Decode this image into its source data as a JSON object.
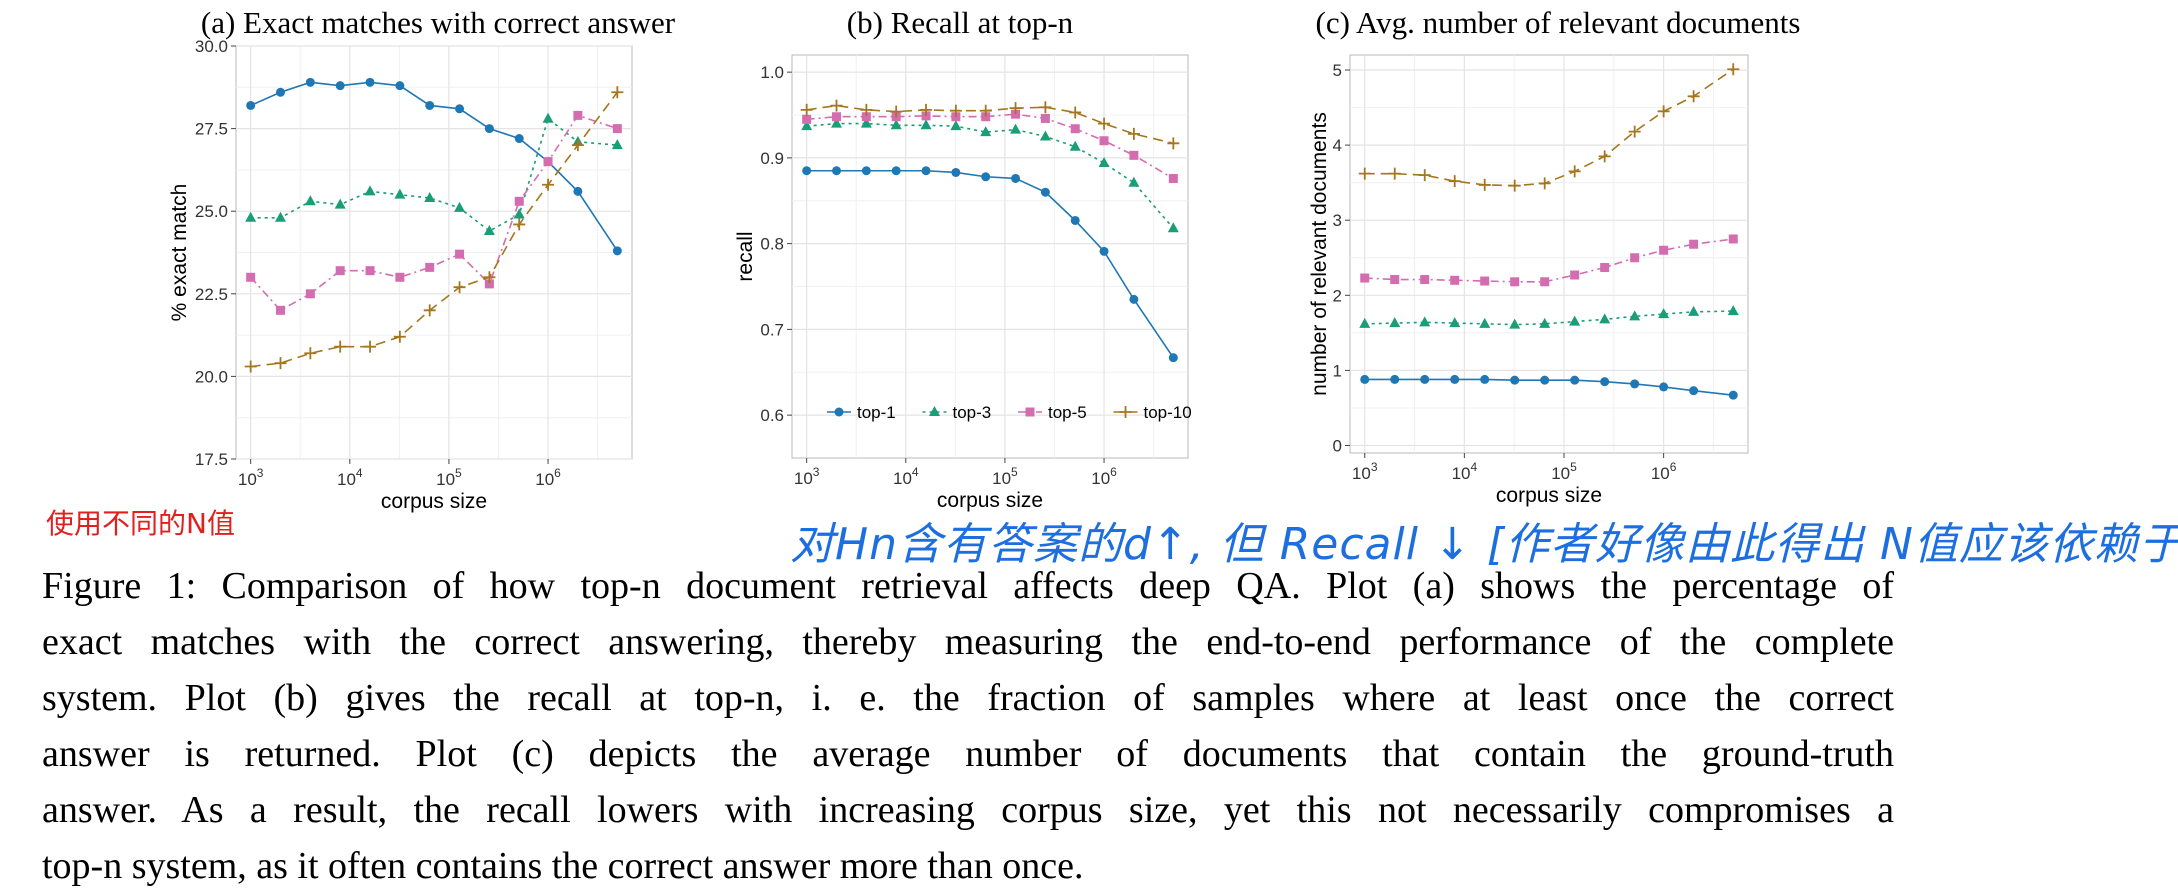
{
  "chart_data": [
    {
      "type": "line",
      "title": "(a) Exact matches with correct answer",
      "xlabel": "corpus size",
      "ylabel": "% exact match",
      "xscale": "log",
      "xlim": [
        1000,
        5000000
      ],
      "xticks": [
        "10^3",
        "10^4",
        "10^5",
        "10^6"
      ],
      "ylim": [
        17.5,
        30.0
      ],
      "yticks": [
        "17.5",
        "20.0",
        "22.5",
        "25.0",
        "27.5",
        "30.0"
      ],
      "grid": true,
      "x": [
        1000,
        2000,
        4000,
        8000,
        16000,
        32000,
        64000,
        128000,
        256000,
        512000,
        1000000,
        2000000,
        5000000
      ],
      "series": [
        {
          "name": "top-1",
          "color": "#1f77b4",
          "marker": "circle",
          "dash": "solid",
          "values": [
            28.2,
            28.6,
            28.9,
            28.8,
            28.9,
            28.8,
            28.2,
            28.1,
            27.5,
            27.2,
            26.5,
            25.6,
            23.8
          ]
        },
        {
          "name": "top-3",
          "color": "#1a9e77",
          "marker": "triangle",
          "dash": "dotted",
          "values": [
            24.8,
            24.8,
            25.3,
            25.2,
            25.6,
            25.5,
            25.4,
            25.1,
            24.4,
            24.9,
            27.8,
            27.1,
            27.0
          ]
        },
        {
          "name": "top-5",
          "color": "#d36db0",
          "marker": "square",
          "dash": "dashdot",
          "values": [
            23.0,
            22.0,
            22.5,
            23.2,
            23.2,
            23.0,
            23.3,
            23.7,
            22.8,
            25.3,
            26.5,
            27.9,
            27.5
          ]
        },
        {
          "name": "top-10",
          "color": "#a6761d",
          "marker": "plus",
          "dash": "dashed",
          "values": [
            20.3,
            20.4,
            20.7,
            20.9,
            20.9,
            21.2,
            22.0,
            22.7,
            23.0,
            24.6,
            25.8,
            27.0,
            28.6
          ]
        }
      ]
    },
    {
      "type": "line",
      "title": "(b) Recall at top-n",
      "xlabel": "corpus size",
      "ylabel": "recall",
      "xscale": "log",
      "xlim": [
        1000,
        5000000
      ],
      "xticks": [
        "10^3",
        "10^4",
        "10^5",
        "10^6"
      ],
      "ylim": [
        0.55,
        1.02
      ],
      "yticks": [
        "0.6",
        "0.7",
        "0.8",
        "0.9",
        "1.0"
      ],
      "grid": true,
      "legend_position": "bottom",
      "x": [
        1000,
        2000,
        4000,
        8000,
        16000,
        32000,
        64000,
        128000,
        256000,
        512000,
        1000000,
        2000000,
        5000000
      ],
      "series": [
        {
          "name": "top-1",
          "color": "#1f77b4",
          "marker": "circle",
          "dash": "solid",
          "values": [
            0.885,
            0.885,
            0.885,
            0.885,
            0.885,
            0.883,
            0.878,
            0.876,
            0.86,
            0.827,
            0.791,
            0.735,
            0.667
          ]
        },
        {
          "name": "top-3",
          "color": "#1a9e77",
          "marker": "triangle",
          "dash": "dotted",
          "values": [
            0.937,
            0.94,
            0.94,
            0.938,
            0.938,
            0.937,
            0.93,
            0.933,
            0.925,
            0.913,
            0.894,
            0.871,
            0.818
          ]
        },
        {
          "name": "top-5",
          "color": "#d36db0",
          "marker": "square",
          "dash": "dashdot",
          "values": [
            0.945,
            0.948,
            0.948,
            0.948,
            0.949,
            0.948,
            0.948,
            0.951,
            0.946,
            0.934,
            0.92,
            0.903,
            0.876
          ]
        },
        {
          "name": "top-10",
          "color": "#a6761d",
          "marker": "plus",
          "dash": "dashed",
          "values": [
            0.956,
            0.961,
            0.956,
            0.954,
            0.956,
            0.955,
            0.955,
            0.958,
            0.959,
            0.953,
            0.94,
            0.928,
            0.917
          ]
        }
      ]
    },
    {
      "type": "line",
      "title": "(c) Avg. number of relevant documents",
      "xlabel": "corpus size",
      "ylabel": "number of relevant documents",
      "xscale": "log",
      "xlim": [
        1000,
        5000000
      ],
      "xticks": [
        "10^3",
        "10^4",
        "10^5",
        "10^6"
      ],
      "ylim": [
        -0.1,
        5.2
      ],
      "yticks": [
        "0",
        "1",
        "2",
        "3",
        "4",
        "5"
      ],
      "grid": true,
      "x": [
        1000,
        2000,
        4000,
        8000,
        16000,
        32000,
        64000,
        128000,
        256000,
        512000,
        1000000,
        2000000,
        5000000
      ],
      "series": [
        {
          "name": "top-1",
          "color": "#1f77b4",
          "marker": "circle",
          "dash": "solid",
          "values": [
            0.88,
            0.88,
            0.88,
            0.88,
            0.88,
            0.87,
            0.87,
            0.87,
            0.85,
            0.82,
            0.78,
            0.73,
            0.67
          ]
        },
        {
          "name": "top-3",
          "color": "#1a9e77",
          "marker": "triangle",
          "dash": "dotted",
          "values": [
            1.62,
            1.63,
            1.64,
            1.63,
            1.62,
            1.61,
            1.62,
            1.65,
            1.68,
            1.72,
            1.75,
            1.78,
            1.79
          ]
        },
        {
          "name": "top-5",
          "color": "#d36db0",
          "marker": "square",
          "dash": "dashdot",
          "values": [
            2.23,
            2.21,
            2.21,
            2.2,
            2.19,
            2.18,
            2.18,
            2.27,
            2.37,
            2.5,
            2.6,
            2.68,
            2.75
          ]
        },
        {
          "name": "top-10",
          "color": "#a6761d",
          "marker": "plus",
          "dash": "dashed",
          "values": [
            3.62,
            3.62,
            3.6,
            3.52,
            3.47,
            3.46,
            3.49,
            3.65,
            3.85,
            4.18,
            4.45,
            4.65,
            5.01
          ]
        }
      ]
    }
  ],
  "annotations": {
    "red_note": "使用不同的N值",
    "handwritten_note": "对Hn含有答案的d↑, 但 Recall ↓  [作者好像由此得出 N值应该依赖于?]"
  },
  "caption": {
    "lines": [
      "Figure 1: Comparison of how top-n document retrieval affects deep QA. Plot (a) shows the percentage of",
      "exact matches with the correct answering, thereby measuring the end-to-end performance of the complete",
      "system.  Plot (b) gives the recall at top-n, i. e.  the fraction of samples where at least once the correct",
      "answer is returned.  Plot (c) depicts the average number of documents that contain the ground-truth",
      "answer. As a result, the recall lowers with increasing corpus size, yet this not necessarily compromises a",
      "top-n system, as it often contains the correct answer more than once."
    ]
  }
}
